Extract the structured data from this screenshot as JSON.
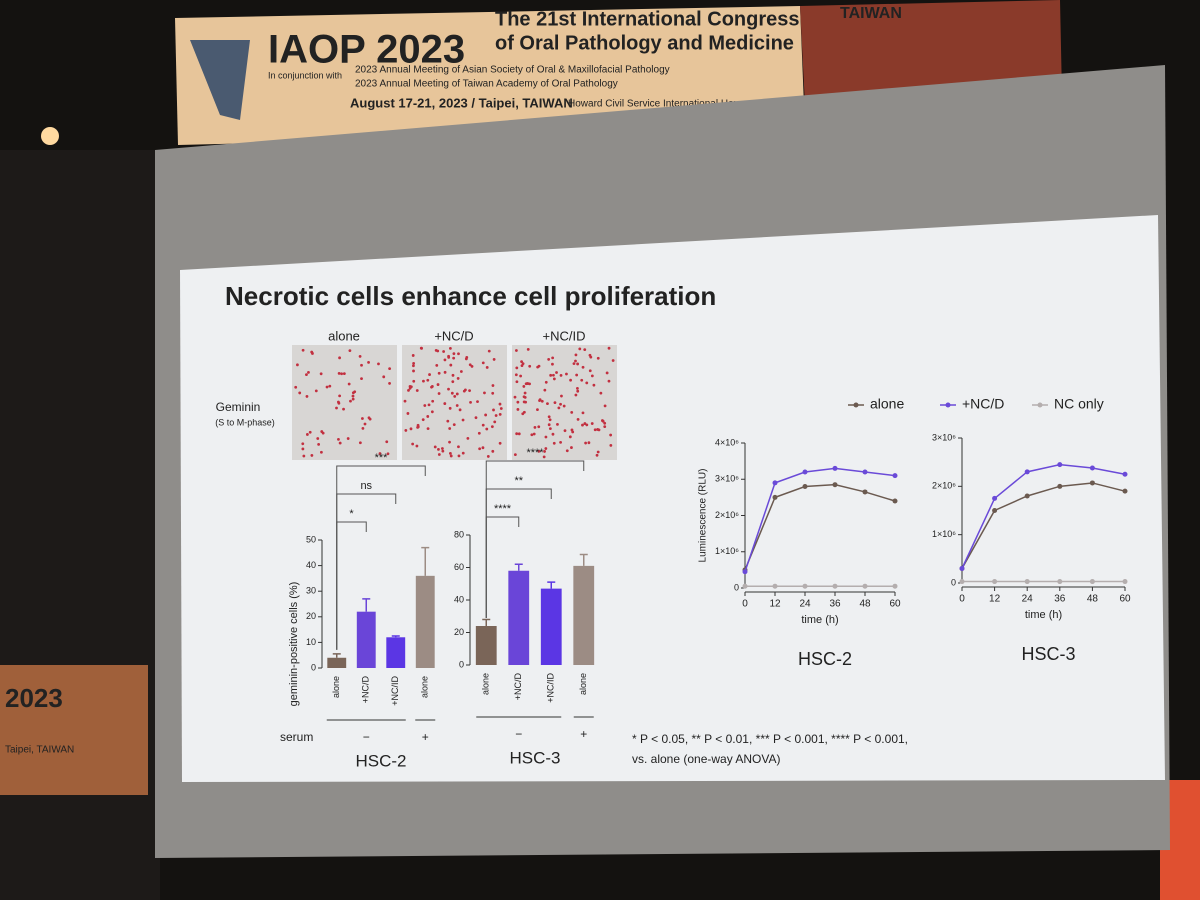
{
  "banner": {
    "logo": "IAOP 2023",
    "congress_line1": "The 21st International Congress",
    "congress_line2": "of Oral Pathology and Medicine",
    "conjunction": "In conjunction with",
    "meeting1": "2023 Annual Meeting of Asian Society of Oral & Maxillofacial Pathology",
    "meeting2": "2023 Annual Meeting of Taiwan Academy of Oral Pathology",
    "date_place": "August 17-21, 2023 / Taipei, TAIWAN",
    "venue": "Howard Civil Service International House",
    "country": "TAIWAN"
  },
  "side_screen": {
    "year": "2023",
    "place": "Taipei, TAIWAN"
  },
  "slide": {
    "title": "Necrotic cells enhance cell proliferation",
    "image_labels": [
      "alone",
      "+NC/D",
      "+NC/ID"
    ],
    "stain": "Geminin",
    "stain_note": "(S to M-phase)",
    "footnote_line1": "* P < 0.05, ** P < 0.01, *** P < 0.001, **** P < 0.001,",
    "footnote_line2": "vs. alone (one-way ANOVA)"
  },
  "chart_data": [
    {
      "type": "bar",
      "title": "HSC-2",
      "y_label": "geminin-positive cells (%)",
      "categories": [
        "alone",
        "+NC/D",
        "+NC/ID",
        "alone"
      ],
      "values": [
        4,
        22,
        12,
        36
      ],
      "errors": [
        1.5,
        5,
        0.5,
        11
      ],
      "colors": [
        "#7a6558",
        "#6a45d8",
        "#5b36e4",
        "#9c8c84"
      ],
      "ylim": [
        0,
        50
      ],
      "yticks": [
        0,
        10,
        20,
        30,
        40,
        50
      ],
      "significance": [
        "*",
        "ns",
        "***"
      ],
      "x_group_label": "serum",
      "x_groups": [
        "−",
        "+"
      ]
    },
    {
      "type": "bar",
      "title": "HSC-3",
      "categories": [
        "alone",
        "+NC/D",
        "+NC/ID",
        "alone"
      ],
      "values": [
        24,
        58,
        47,
        61
      ],
      "errors": [
        4,
        4,
        4,
        7
      ],
      "colors": [
        "#7a6558",
        "#6a45d8",
        "#5b36e4",
        "#9c8c84"
      ],
      "ylim": [
        0,
        80
      ],
      "yticks": [
        0,
        20,
        40,
        60,
        80
      ],
      "significance": [
        "****",
        "**",
        "****"
      ],
      "x_groups": [
        "−",
        "+"
      ]
    },
    {
      "type": "line",
      "title": "HSC-2",
      "x_label": "time (h)",
      "y_label": "Luminescence (RLU)",
      "x": [
        0,
        12,
        24,
        36,
        48,
        60
      ],
      "xlim": [
        0,
        60
      ],
      "xticks": [
        0,
        12,
        24,
        36,
        48,
        60
      ],
      "ylim": [
        0,
        4000000
      ],
      "yticks": [
        0,
        {
          "value": 1000000,
          "label": "1×10⁶"
        },
        {
          "value": 2000000,
          "label": "2×10⁶"
        },
        {
          "value": 3000000,
          "label": "3×10⁶"
        },
        {
          "value": 4000000,
          "label": "4×10⁶"
        }
      ],
      "series": [
        {
          "name": "alone",
          "color": "#6b5a50",
          "values": [
            500000,
            2500000,
            2800000,
            2850000,
            2650000,
            2400000
          ]
        },
        {
          "name": "+NC/D",
          "color": "#6a4ad8",
          "values": [
            450000,
            2900000,
            3200000,
            3300000,
            3200000,
            3100000
          ]
        },
        {
          "name": "NC only",
          "color": "#b4aeae",
          "values": [
            50000,
            50000,
            50000,
            50000,
            50000,
            50000
          ]
        }
      ]
    },
    {
      "type": "line",
      "title": "HSC-3",
      "x_label": "time (h)",
      "x": [
        0,
        12,
        24,
        36,
        48,
        60
      ],
      "xlim": [
        0,
        60
      ],
      "xticks": [
        0,
        12,
        24,
        36,
        48,
        60
      ],
      "ylim": [
        0,
        3000000
      ],
      "yticks": [
        0,
        {
          "value": 1000000,
          "label": "1×10⁶"
        },
        {
          "value": 2000000,
          "label": "2×10⁶"
        },
        {
          "value": 3000000,
          "label": "3×10⁶"
        }
      ],
      "series": [
        {
          "color": "#6b5a50",
          "values": [
            300000,
            1500000,
            1800000,
            2000000,
            2070000,
            1900000
          ]
        },
        {
          "color": "#6a4ad8",
          "values": [
            300000,
            1750000,
            2300000,
            2450000,
            2380000,
            2250000
          ]
        },
        {
          "color": "#b4aeae",
          "values": [
            30000,
            30000,
            30000,
            30000,
            30000,
            30000
          ]
        }
      ]
    }
  ]
}
